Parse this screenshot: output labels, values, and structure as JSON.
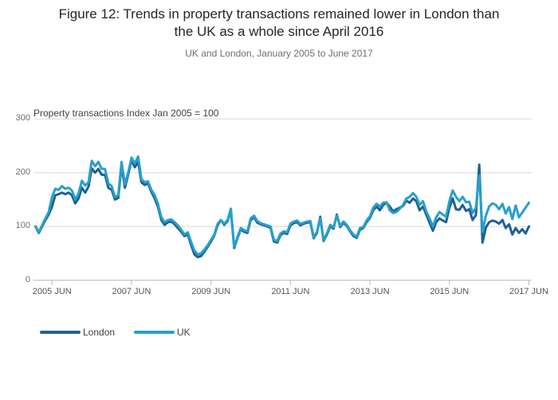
{
  "title": "Figure 12: Trends in property transactions remained lower in London than the UK as a whole since April 2016",
  "subtitle": "UK and London, January 2005 to June 2017",
  "chart": {
    "axis_label": "Property transactions Index Jan 2005 = 100",
    "y_ticks": [
      0,
      100,
      200,
      300
    ],
    "x_ticks": [
      {
        "label": "2005 JUN",
        "month_index": 5
      },
      {
        "label": "2007 JUN",
        "month_index": 29
      },
      {
        "label": "2009 JUN",
        "month_index": 53
      },
      {
        "label": "2011 JUN",
        "month_index": 77
      },
      {
        "label": "2013 JUN",
        "month_index": 101
      },
      {
        "label": "2015 JUN",
        "month_index": 125
      },
      {
        "label": "2017 JUN",
        "month_index": 149
      }
    ],
    "legend": [
      {
        "label": "London",
        "color": "#206095"
      },
      {
        "label": "UK",
        "color": "#27a0cc"
      }
    ]
  },
  "chart_data": {
    "type": "line",
    "title": "Figure 12: Trends in property transactions remained lower in London than the UK as a whole since April 2016",
    "subtitle": "UK and London, January 2005 to June 2017",
    "ylabel": "Property transactions Index Jan 2005 = 100",
    "ylim": [
      0,
      300
    ],
    "x_unit": "month",
    "x_start": "Jan 2005",
    "x_end": "Jun 2017",
    "x_points": 150,
    "grid": "horizontal",
    "legend_position": "bottom-left",
    "series": [
      {
        "name": "London",
        "color": "#206095",
        "values": [
          100,
          88,
          100,
          112,
          122,
          137,
          158,
          160,
          163,
          160,
          163,
          158,
          143,
          152,
          172,
          163,
          174,
          208,
          200,
          207,
          196,
          196,
          172,
          168,
          150,
          153,
          213,
          172,
          196,
          223,
          210,
          220,
          182,
          177,
          180,
          164,
          152,
          136,
          112,
          103,
          108,
          109,
          104,
          97,
          90,
          82,
          85,
          65,
          48,
          43,
          45,
          53,
          62,
          72,
          83,
          102,
          112,
          103,
          110,
          130,
          60,
          78,
          95,
          90,
          88,
          112,
          117,
          107,
          104,
          102,
          100,
          97,
          72,
          70,
          84,
          88,
          86,
          102,
          106,
          108,
          102,
          105,
          107,
          108,
          78,
          88,
          118,
          73,
          85,
          100,
          96,
          122,
          99,
          107,
          101,
          91,
          82,
          79,
          94,
          97,
          108,
          116,
          130,
          137,
          130,
          140,
          144,
          137,
          128,
          132,
          135,
          138,
          148,
          144,
          152,
          147,
          130,
          137,
          122,
          107,
          92,
          108,
          115,
          111,
          108,
          135,
          152,
          132,
          131,
          140,
          129,
          132,
          112,
          121,
          215,
          70,
          98,
          108,
          111,
          109,
          105,
          112,
          97,
          104,
          85,
          97,
          88,
          95,
          87,
          100
        ]
      },
      {
        "name": "UK",
        "color": "#27a0cc",
        "values": [
          100,
          90,
          102,
          115,
          127,
          155,
          170,
          168,
          175,
          170,
          172,
          167,
          150,
          161,
          185,
          176,
          182,
          222,
          212,
          220,
          207,
          207,
          180,
          175,
          155,
          158,
          220,
          178,
          200,
          228,
          217,
          230,
          188,
          182,
          184,
          168,
          158,
          142,
          117,
          108,
          112,
          113,
          108,
          102,
          94,
          85,
          89,
          71,
          55,
          48,
          50,
          57,
          65,
          75,
          85,
          105,
          112,
          105,
          112,
          133,
          62,
          80,
          97,
          93,
          91,
          115,
          120,
          110,
          106,
          104,
          102,
          100,
          75,
          73,
          87,
          91,
          89,
          105,
          109,
          111,
          105,
          107,
          109,
          110,
          80,
          90,
          115,
          75,
          87,
          103,
          98,
          120,
          101,
          109,
          103,
          93,
          85,
          81,
          97,
          99,
          111,
          119,
          135,
          142,
          137,
          144,
          145,
          130,
          125,
          127,
          133,
          140,
          152,
          155,
          162,
          155,
          140,
          147,
          128,
          115,
          100,
          117,
          127,
          122,
          118,
          147,
          167,
          155,
          147,
          155,
          145,
          146,
          125,
          135,
          195,
          90,
          120,
          137,
          143,
          140,
          132,
          142,
          124,
          136,
          114,
          139,
          117,
          126,
          135,
          144
        ]
      }
    ]
  }
}
